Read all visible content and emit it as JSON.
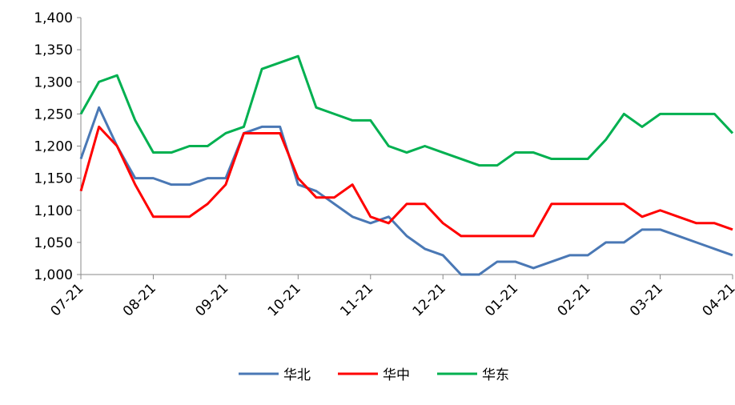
{
  "chart_data": {
    "type": "line",
    "categories": [
      "07-21",
      null,
      null,
      null,
      "08-21",
      null,
      null,
      null,
      "09-21",
      null,
      null,
      null,
      "10-21",
      null,
      null,
      null,
      "11-21",
      null,
      null,
      null,
      "12-21",
      null,
      null,
      null,
      "01-21",
      null,
      null,
      null,
      "02-21",
      null,
      null,
      null,
      "03-21",
      null,
      null,
      null,
      "04-21"
    ],
    "series": [
      {
        "name": "华北",
        "color": "#4a78b5",
        "values": [
          1180,
          1260,
          1200,
          1150,
          1150,
          1140,
          1140,
          1150,
          1150,
          1220,
          1230,
          1230,
          1140,
          1130,
          1110,
          1090,
          1080,
          1090,
          1060,
          1040,
          1030,
          1000,
          1000,
          1020,
          1020,
          1010,
          1020,
          1030,
          1030,
          1050,
          1050,
          1070,
          1070,
          1060,
          1050,
          1040,
          1030
        ]
      },
      {
        "name": "华中",
        "color": "#ff0000",
        "values": [
          1130,
          1230,
          1200,
          1140,
          1090,
          1090,
          1090,
          1110,
          1140,
          1220,
          1220,
          1220,
          1150,
          1120,
          1120,
          1140,
          1090,
          1080,
          1110,
          1110,
          1080,
          1060,
          1060,
          1060,
          1060,
          1060,
          1110,
          1110,
          1110,
          1110,
          1110,
          1090,
          1100,
          1090,
          1080,
          1080,
          1070
        ]
      },
      {
        "name": "华东",
        "color": "#00b050",
        "values": [
          1250,
          1300,
          1310,
          1240,
          1190,
          1190,
          1200,
          1200,
          1220,
          1230,
          1320,
          1330,
          1340,
          1260,
          1250,
          1240,
          1240,
          1200,
          1190,
          1200,
          1190,
          1180,
          1170,
          1170,
          1190,
          1190,
          1180,
          1180,
          1180,
          1210,
          1250,
          1230,
          1250,
          1250,
          1250,
          1250,
          1220
        ]
      }
    ],
    "ylim": [
      1000,
      1400
    ],
    "yticks": [
      {
        "value": 1000,
        "label": "1,000"
      },
      {
        "value": 1050,
        "label": "1,050"
      },
      {
        "value": 1100,
        "label": "1,100"
      },
      {
        "value": 1150,
        "label": "1,150"
      },
      {
        "value": 1200,
        "label": "1,200"
      },
      {
        "value": 1250,
        "label": "1,250"
      },
      {
        "value": 1300,
        "label": "1,300"
      },
      {
        "value": 1350,
        "label": "1,350"
      },
      {
        "value": 1400,
        "label": "1,400"
      }
    ],
    "grid": false,
    "legend": "bottom"
  }
}
